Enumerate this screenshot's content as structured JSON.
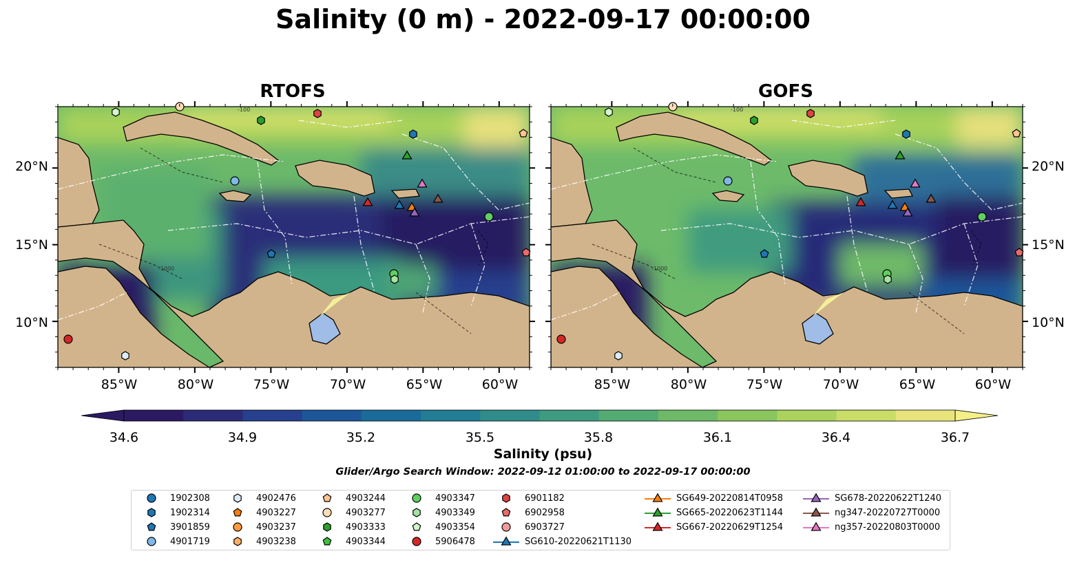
{
  "title": "Salinity (0 m) - 2022-09-17 00:00:00",
  "panels": [
    {
      "title": "RTOFS"
    },
    {
      "title": "GOFS"
    }
  ],
  "axes": {
    "lon_ticks": [
      "85°W",
      "80°W",
      "75°W",
      "70°W",
      "65°W",
      "60°W"
    ],
    "lat_ticks": [
      "20°N",
      "15°N",
      "10°N"
    ]
  },
  "contour_labels": [
    "-100",
    "-1000",
    "-100",
    "-1000"
  ],
  "colorbar": {
    "ticks": [
      "34.6",
      "34.9",
      "35.2",
      "35.5",
      "35.8",
      "36.1",
      "36.4",
      "36.7"
    ],
    "min": 34.6,
    "max": 36.7,
    "label": "Salinity (psu)",
    "colors": [
      "#2b1a63",
      "#2c2b78",
      "#263f8e",
      "#1d579a",
      "#1a6b99",
      "#217c94",
      "#2f8c8a",
      "#3f9b7f",
      "#54ab72",
      "#6eb967",
      "#8bc55e",
      "#aad25c",
      "#c9dd67",
      "#e8e47b"
    ]
  },
  "search_window": "Glider/Argo Search Window: 2022-09-12 01:00:00 to 2022-09-17 00:00:00",
  "legend": {
    "col1": [
      {
        "label": "1902308",
        "marker": "circle",
        "color": "#1f77b4"
      },
      {
        "label": "1902314",
        "marker": "hexagon",
        "color": "#1f77b4"
      },
      {
        "label": "3901859",
        "marker": "pentagon",
        "color": "#1f77b4"
      },
      {
        "label": "4901719",
        "marker": "circle",
        "color": "#7fb8e6"
      }
    ],
    "col2": [
      {
        "label": "4902476",
        "marker": "hexagon",
        "color": "#dcecfb"
      },
      {
        "label": "4903227",
        "marker": "pentagon",
        "color": "#ff7f0e"
      },
      {
        "label": "4903237",
        "marker": "circle",
        "color": "#ff9a3c"
      },
      {
        "label": "4903238",
        "marker": "hexagon",
        "color": "#ffb066"
      }
    ],
    "col3": [
      {
        "label": "4903244",
        "marker": "pentagon",
        "color": "#ffc592"
      },
      {
        "label": "4903277",
        "marker": "circle",
        "color": "#ffdcb8"
      },
      {
        "label": "4903333",
        "marker": "hexagon",
        "color": "#2ca02c"
      },
      {
        "label": "4903344",
        "marker": "pentagon",
        "color": "#3fbf3f"
      }
    ],
    "col4": [
      {
        "label": "4903347",
        "marker": "circle",
        "color": "#5fcf5f"
      },
      {
        "label": "4903349",
        "marker": "hexagon",
        "color": "#a6e3a0"
      },
      {
        "label": "4903354",
        "marker": "pentagon",
        "color": "#d2f5cc"
      },
      {
        "label": "5906478",
        "marker": "circle",
        "color": "#d62728"
      }
    ],
    "col5": [
      {
        "label": "6901182",
        "marker": "hexagon",
        "color": "#dd4444"
      },
      {
        "label": "6902958",
        "marker": "pentagon",
        "color": "#e86b6b"
      },
      {
        "label": "6903727",
        "marker": "circle",
        "color": "#f29a9a"
      },
      {
        "label": "SG610-20220621T1130",
        "marker": "triangle-line",
        "color": "#1f77b4"
      }
    ],
    "col6": [
      {
        "label": "SG649-20220814T0958",
        "marker": "triangle-line",
        "color": "#ff7f0e"
      },
      {
        "label": "SG665-20220623T1144",
        "marker": "triangle-line",
        "color": "#2ca02c"
      },
      {
        "label": "SG667-20220629T1254",
        "marker": "triangle-line",
        "color": "#d62728"
      }
    ],
    "col7": [
      {
        "label": "SG678-20220622T1240",
        "marker": "triangle-line",
        "color": "#9467bd"
      },
      {
        "label": "ng347-20220727T0000",
        "marker": "triangle-line",
        "color": "#8c564b"
      },
      {
        "label": "ng357-20220803T0000",
        "marker": "triangle-line",
        "color": "#e377c2"
      }
    ]
  },
  "colors": {
    "land": "#d2b48c",
    "lake": "#9fbde6"
  }
}
